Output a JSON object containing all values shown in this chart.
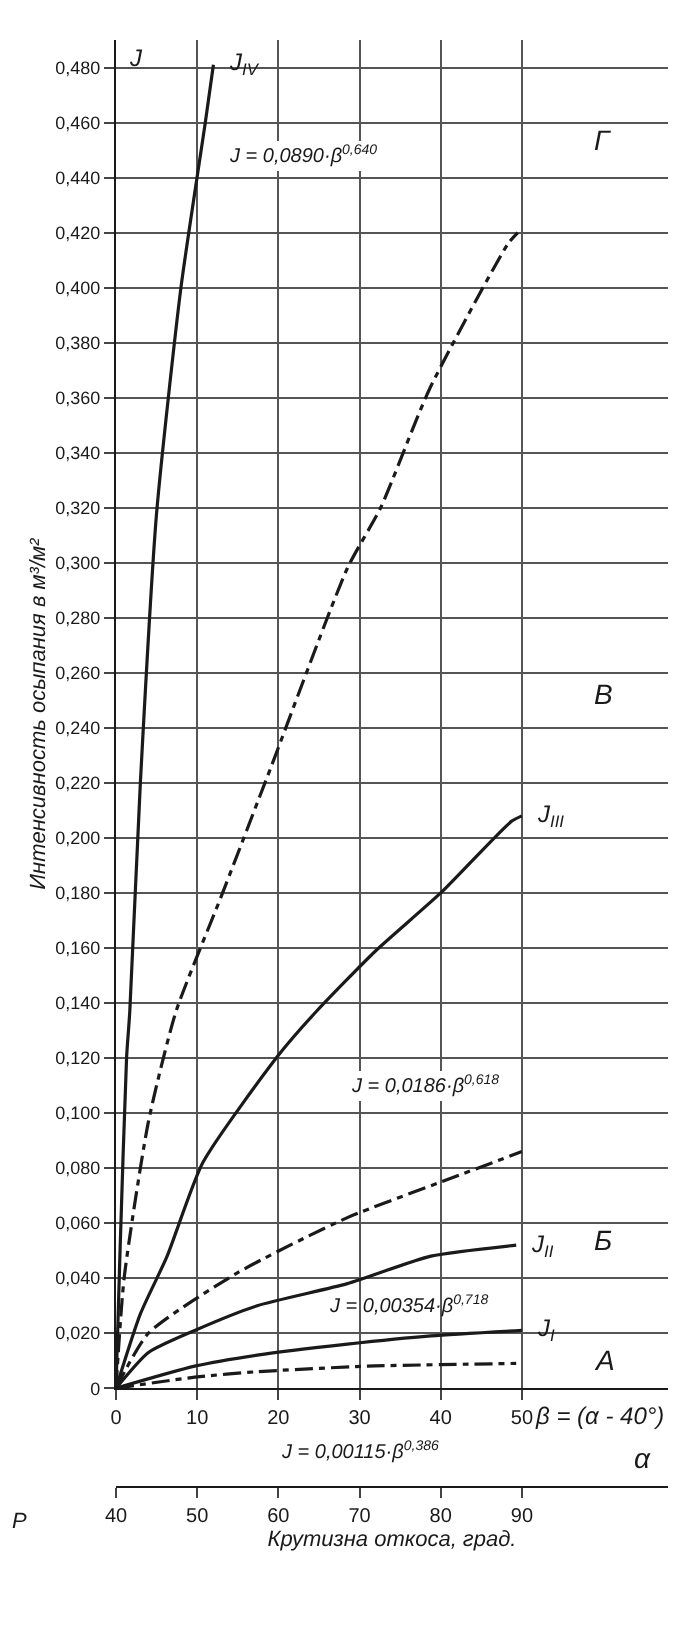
{
  "chart_data": {
    "type": "line",
    "xlabel": "Крутизна откоса, град.",
    "ylabel": "Интенсивность осыпания в м³/м²",
    "x2label": "α",
    "xlim": [
      0,
      68
    ],
    "xticks": [
      0,
      10,
      20,
      30,
      40,
      50
    ],
    "x2lim": [
      40,
      108
    ],
    "x2ticks": [
      40,
      50,
      60,
      70,
      80,
      90
    ],
    "ylim": [
      0,
      0.49
    ],
    "yticks": [
      0,
      {
        "value": 0.02,
        "label": "0,020"
      },
      {
        "value": 0.04,
        "label": "0,040"
      },
      {
        "value": 0.06,
        "label": "0,060"
      },
      {
        "value": 0.08,
        "label": "0,080"
      },
      {
        "value": 0.1,
        "label": "0,100"
      },
      {
        "value": 0.12,
        "label": "0,120"
      },
      {
        "value": 0.14,
        "label": "0,140"
      },
      {
        "value": 0.16,
        "label": "0,160"
      },
      {
        "value": 0.18,
        "label": "0,180"
      },
      {
        "value": 0.2,
        "label": "0,200"
      },
      {
        "value": 0.22,
        "label": "0,220"
      },
      {
        "value": 0.24,
        "label": "0,240"
      },
      {
        "value": 0.26,
        "label": "0,260"
      },
      {
        "value": 0.28,
        "label": "0,280"
      },
      {
        "value": 0.3,
        "label": "0,300"
      },
      {
        "value": 0.32,
        "label": "0,320"
      },
      {
        "value": 0.34,
        "label": "0,340"
      },
      {
        "value": 0.36,
        "label": "0,360"
      },
      {
        "value": 0.38,
        "label": "0,380"
      },
      {
        "value": 0.4,
        "label": "0,400"
      },
      {
        "value": 0.42,
        "label": "0,420"
      },
      {
        "value": 0.44,
        "label": "0,440"
      },
      {
        "value": 0.46,
        "label": "0,460"
      },
      {
        "value": 0.48,
        "label": "0,480"
      }
    ],
    "grid": true,
    "marker": "none",
    "series": [
      {
        "name": "J$_{IV}$",
        "color": "#1a1a1a",
        "line_style": "solid",
        "x": [
          0,
          0.5,
          1.3,
          1.7,
          3,
          5,
          8,
          11,
          12
        ],
        "values": [
          0,
          0.05,
          0.12,
          0.137,
          0.22,
          0.318,
          0.4,
          0.46,
          0.481
        ]
      },
      {
        "color": "#1a1a1a",
        "line_style": "dashed",
        "x": [
          0,
          1,
          4,
          7.4,
          13,
          19,
          28.5,
          32.6,
          38.6,
          48.3,
          49.5
        ],
        "values": [
          0,
          0.04,
          0.097,
          0.137,
          0.179,
          0.225,
          0.298,
          0.32,
          0.363,
          0.416,
          0.42
        ]
      },
      {
        "name": "J$_{III}$",
        "color": "#1a1a1a",
        "line_style": "solid",
        "x": [
          0,
          3,
          6.3,
          10.7,
          20,
          24.7,
          32,
          40,
          48.7,
          50
        ],
        "values": [
          0,
          0.027,
          0.048,
          0.082,
          0.121,
          0.137,
          0.159,
          0.18,
          0.206,
          0.208
        ]
      },
      {
        "color": "#1a1a1a",
        "line_style": "dashed",
        "x": [
          0,
          4,
          15,
          28.5,
          41,
          50
        ],
        "values": [
          0,
          0.02,
          0.042,
          0.062,
          0.076,
          0.086
        ]
      },
      {
        "name": "J$_{II}$",
        "color": "#1a1a1a",
        "line_style": "solid",
        "x": [
          0,
          4,
          9.7,
          17.4,
          28.5,
          38.8,
          49.3
        ],
        "values": [
          0,
          0.013,
          0.021,
          0.03,
          0.038,
          0.048,
          0.052
        ]
      },
      {
        "name": "J$_{I}$",
        "color": "#1a1a1a",
        "line_style": "solid",
        "x": [
          0,
          9.7,
          17.4,
          28.5,
          38.8,
          50
        ],
        "values": [
          0,
          0.008,
          0.012,
          0.016,
          0.019,
          0.021
        ]
      },
      {
        "color": "#1a1a1a",
        "line_style": "dashed",
        "x": [
          0,
          9.7,
          17.4,
          31,
          49.3
        ],
        "values": [
          0,
          0.004,
          0.006,
          0.008,
          0.009
        ]
      }
    ],
    "annotations": [
      "J = 0,0890·β$^{0,640}$",
      "J = 0,0186·β$^{0,618}$",
      "J = 0,00354·β$^{0,718}$",
      "J = 0,00115·β$^{0,386}$",
      "J",
      "β = (α - 40°)",
      "Р",
      "А",
      "Б",
      "В",
      "Г"
    ],
    "legend": false
  }
}
